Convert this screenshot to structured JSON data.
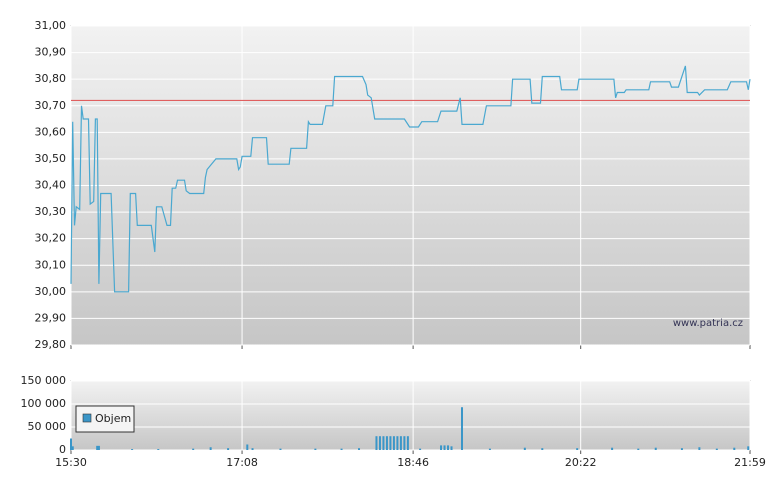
{
  "chart_data": [
    {
      "type": "line",
      "x": [
        "15:30",
        "15:31",
        "15:32",
        "15:33",
        "15:35",
        "15:36",
        "15:37",
        "15:40",
        "15:41",
        "15:43",
        "15:44",
        "15:45",
        "15:46",
        "15:47",
        "15:53",
        "15:55",
        "16:03",
        "16:04",
        "16:07",
        "16:08",
        "16:16",
        "16:18",
        "16:19",
        "16:22",
        "16:25",
        "16:27",
        "16:28",
        "16:30",
        "16:31",
        "16:35",
        "16:36",
        "16:38",
        "16:46",
        "16:47",
        "16:48",
        "16:53",
        "17:05",
        "17:06",
        "17:07",
        "17:08",
        "17:13",
        "17:14",
        "17:22",
        "17:23",
        "17:35",
        "17:36",
        "17:45",
        "17:46",
        "17:47",
        "17:54",
        "17:56",
        "18:00",
        "18:01",
        "18:17",
        "18:19",
        "18:20",
        "18:22",
        "18:24",
        "18:41",
        "18:44",
        "18:49",
        "18:51",
        "19:00",
        "19:02",
        "19:11",
        "19:13",
        "19:14",
        "19:26",
        "19:28",
        "19:42",
        "19:43",
        "19:53",
        "19:54",
        "19:59",
        "20:00",
        "20:10",
        "20:11",
        "20:20",
        "20:21",
        "20:41",
        "20:42",
        "20:43",
        "20:47",
        "20:48",
        "21:01",
        "21:02",
        "21:13",
        "21:14",
        "21:18",
        "21:22",
        "21:23",
        "21:29",
        "21:30",
        "21:33",
        "21:46",
        "21:48",
        "21:57",
        "21:58",
        "21:59"
      ],
      "series": [
        {
          "color": "#4aa8d0",
          "values": [
            30.03,
            30.64,
            30.25,
            30.32,
            30.31,
            30.7,
            30.65,
            30.65,
            30.33,
            30.34,
            30.65,
            30.65,
            30.03,
            30.37,
            30.37,
            30.0,
            30.0,
            30.37,
            30.37,
            30.25,
            30.25,
            30.15,
            30.32,
            30.32,
            30.25,
            30.25,
            30.39,
            30.39,
            30.42,
            30.42,
            30.38,
            30.37,
            30.37,
            30.43,
            30.46,
            30.5,
            30.5,
            30.46,
            30.47,
            30.51,
            30.51,
            30.58,
            30.58,
            30.48,
            30.48,
            30.54,
            30.54,
            30.64,
            30.63,
            30.63,
            30.7,
            30.7,
            30.81,
            30.81,
            30.78,
            30.74,
            30.73,
            30.65,
            30.65,
            30.62,
            30.62,
            30.64,
            30.64,
            30.68,
            30.68,
            30.73,
            30.63,
            30.63,
            30.7,
            30.7,
            30.8,
            30.8,
            30.71,
            30.71,
            30.81,
            30.81,
            30.76,
            30.76,
            30.8,
            30.8,
            30.73,
            30.75,
            30.75,
            30.76,
            30.76,
            30.79,
            30.79,
            30.77,
            30.77,
            30.85,
            30.75,
            30.75,
            30.74,
            30.76,
            30.76,
            30.79,
            30.79,
            30.76,
            30.8
          ]
        }
      ],
      "reference_line": {
        "value": 30.72,
        "color": "#e06060"
      },
      "annotation": "www.patria.cz",
      "xlim": [
        "15:30",
        "21:59"
      ],
      "ylim": [
        29.8,
        31.0
      ],
      "yticks": [
        {
          "value": 29.8,
          "label": "29,80"
        },
        {
          "value": 29.9,
          "label": "29,90"
        },
        {
          "value": 30.0,
          "label": "30,00"
        },
        {
          "value": 30.1,
          "label": "30,10"
        },
        {
          "value": 30.2,
          "label": "30,20"
        },
        {
          "value": 30.3,
          "label": "30,30"
        },
        {
          "value": 30.4,
          "label": "30,40"
        },
        {
          "value": 30.5,
          "label": "30,50"
        },
        {
          "value": 30.6,
          "label": "30,60"
        },
        {
          "value": 30.7,
          "label": "30,70"
        },
        {
          "value": 30.8,
          "label": "30,80"
        },
        {
          "value": 30.9,
          "label": "30,90"
        },
        {
          "value": 31.0,
          "label": "31,00"
        }
      ],
      "grid": true
    },
    {
      "type": "bar",
      "x": [
        "15:30",
        "15:31",
        "15:45",
        "15:46",
        "16:05",
        "16:20",
        "16:40",
        "16:50",
        "17:00",
        "17:11",
        "17:14",
        "17:30",
        "17:50",
        "18:05",
        "18:15",
        "18:25",
        "18:27",
        "18:29",
        "18:31",
        "18:33",
        "18:35",
        "18:37",
        "18:39",
        "18:41",
        "18:43",
        "18:50",
        "19:02",
        "19:04",
        "19:06",
        "19:08",
        "19:14",
        "19:30",
        "19:50",
        "20:00",
        "20:20",
        "20:40",
        "20:55",
        "21:05",
        "21:20",
        "21:30",
        "21:40",
        "21:50",
        "21:58"
      ],
      "series": [
        {
          "name": "Objem",
          "color": "#3a96c8",
          "values": [
            25000,
            8000,
            9000,
            9000,
            2000,
            2000,
            3000,
            6000,
            4000,
            12000,
            4000,
            3000,
            3000,
            3000,
            4000,
            30000,
            30000,
            30000,
            30000,
            30000,
            30000,
            30000,
            30000,
            30000,
            30000,
            3000,
            10000,
            10000,
            10000,
            8000,
            93000,
            3000,
            5000,
            4000,
            4000,
            5000,
            3000,
            5000,
            4000,
            6000,
            3000,
            5000,
            8000
          ]
        }
      ],
      "xlim": [
        "15:30",
        "21:59"
      ],
      "xticks": [
        "15:30",
        "17:08",
        "18:46",
        "20:22",
        "21:59"
      ],
      "ylim": [
        0,
        150000
      ],
      "yticks": [
        0,
        {
          "value": 50000,
          "label": "50 000"
        },
        {
          "value": 100000,
          "label": "100 000"
        },
        {
          "value": 150000,
          "label": "150 000"
        }
      ],
      "grid": true,
      "legend": "top-left"
    }
  ]
}
